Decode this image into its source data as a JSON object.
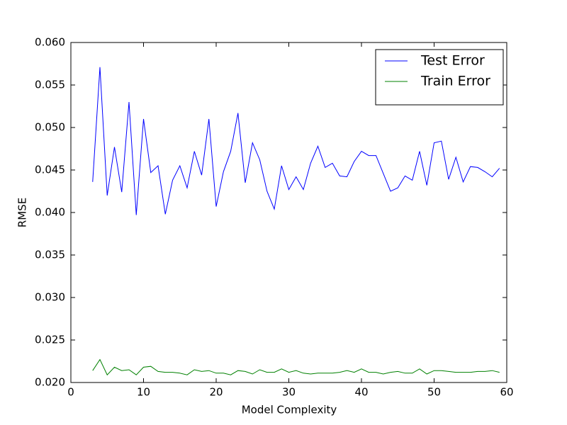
{
  "chart_data": {
    "type": "line",
    "x_label": "Model Complexity",
    "y_label": "RMSE",
    "x": [
      3,
      4,
      5,
      6,
      7,
      8,
      9,
      10,
      11,
      12,
      13,
      14,
      15,
      16,
      17,
      18,
      19,
      20,
      21,
      22,
      23,
      24,
      25,
      26,
      27,
      28,
      29,
      30,
      31,
      32,
      33,
      34,
      35,
      36,
      37,
      38,
      39,
      40,
      41,
      42,
      43,
      44,
      45,
      46,
      47,
      48,
      49,
      50,
      51,
      52,
      53,
      54,
      55,
      56,
      57,
      58,
      59
    ],
    "series": [
      {
        "name": "Test Error",
        "color": "#0000ff",
        "values": [
          0.0436,
          0.0571,
          0.042,
          0.0477,
          0.0424,
          0.053,
          0.0397,
          0.051,
          0.0447,
          0.0455,
          0.0398,
          0.0438,
          0.0455,
          0.0429,
          0.0472,
          0.0444,
          0.051,
          0.0407,
          0.0448,
          0.0472,
          0.0517,
          0.0435,
          0.0482,
          0.0462,
          0.0425,
          0.0404,
          0.0455,
          0.0427,
          0.0442,
          0.0427,
          0.0458,
          0.0478,
          0.0453,
          0.0458,
          0.0443,
          0.0442,
          0.046,
          0.0472,
          0.0467,
          0.0467,
          0.0446,
          0.0425,
          0.0429,
          0.0443,
          0.0438,
          0.0472,
          0.0432,
          0.0482,
          0.0484,
          0.0439,
          0.0465,
          0.0436,
          0.0454,
          0.0453,
          0.0448,
          0.0442,
          0.0452
        ]
      },
      {
        "name": "Train Error",
        "color": "#008000",
        "values": [
          0.0214,
          0.0227,
          0.0209,
          0.0218,
          0.0214,
          0.0215,
          0.0209,
          0.0218,
          0.0219,
          0.0213,
          0.0212,
          0.0212,
          0.0211,
          0.0209,
          0.0215,
          0.0213,
          0.0214,
          0.0211,
          0.0211,
          0.0209,
          0.0214,
          0.0213,
          0.021,
          0.0215,
          0.0212,
          0.0212,
          0.0216,
          0.0212,
          0.0214,
          0.0211,
          0.021,
          0.0211,
          0.0211,
          0.0211,
          0.0212,
          0.0214,
          0.0212,
          0.0216,
          0.0212,
          0.0212,
          0.021,
          0.0212,
          0.0213,
          0.0211,
          0.0211,
          0.0216,
          0.021,
          0.0214,
          0.0214,
          0.0213,
          0.0212,
          0.0212,
          0.0212,
          0.0213,
          0.0213,
          0.0214,
          0.0212
        ]
      }
    ],
    "xlim": [
      0,
      60
    ],
    "xticks": [
      0,
      10,
      20,
      30,
      40,
      50,
      60
    ],
    "ylim": [
      0.02,
      0.06
    ],
    "yticks": [
      {
        "value": 0.02,
        "label": "0.020"
      },
      0.025,
      {
        "value": 0.03,
        "label": "0.030"
      },
      0.035,
      {
        "value": 0.04,
        "label": "0.040"
      },
      0.045,
      {
        "value": 0.05,
        "label": "0.050"
      },
      0.055,
      {
        "value": 0.06,
        "label": "0.060"
      }
    ],
    "grid": false,
    "legend": "upper right"
  }
}
